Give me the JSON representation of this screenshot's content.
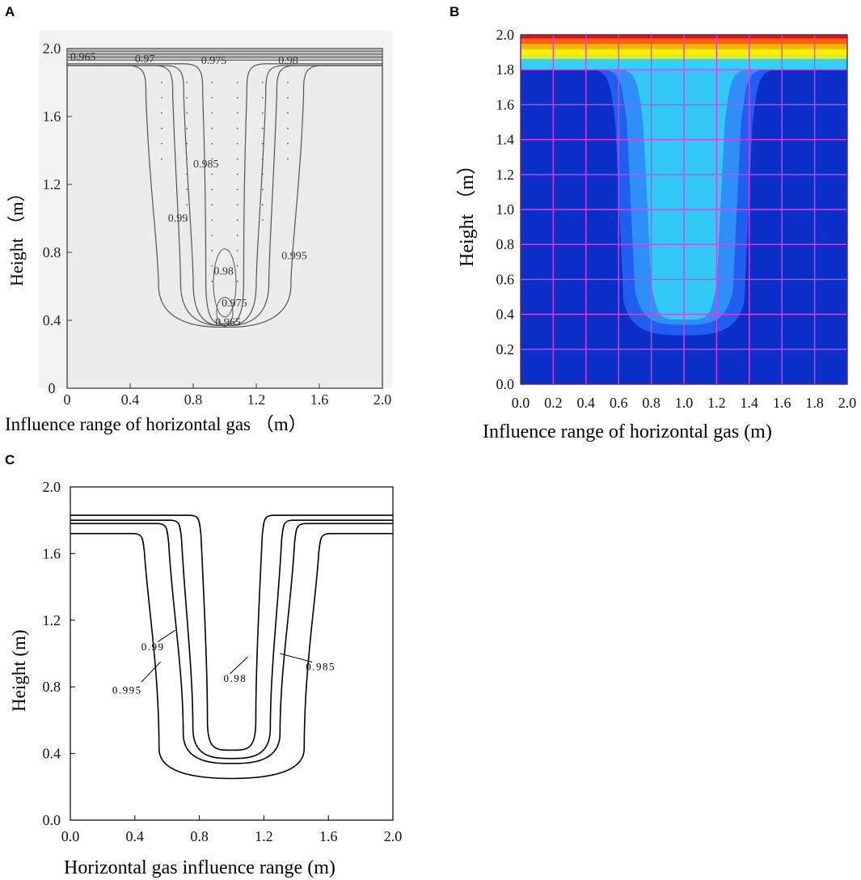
{
  "panels": {
    "A": {
      "letter": "A"
    },
    "B": {
      "letter": "B"
    },
    "C": {
      "letter": "C"
    }
  },
  "chart_data": [
    {
      "panel": "A",
      "type": "contour",
      "xlabel": "Influence range of horizontal gas  （m）",
      "ylabel": "Height （m）",
      "xlim": [
        0,
        2.0
      ],
      "ylim": [
        0,
        2.0
      ],
      "xticks": [
        "0",
        "0.4",
        "0.8",
        "1.2",
        "1.6",
        "2.0"
      ],
      "yticks": [
        "0",
        "0.4",
        "0.8",
        "1.2",
        "1.6",
        "2.0"
      ],
      "contour_labels": [
        {
          "text": "0.965",
          "x": 0.02,
          "y": 1.93
        },
        {
          "text": "0.97",
          "x": 0.43,
          "y": 1.92
        },
        {
          "text": "0.975",
          "x": 0.85,
          "y": 1.91
        },
        {
          "text": "0.98",
          "x": 1.34,
          "y": 1.91
        },
        {
          "text": "0.985",
          "x": 0.8,
          "y": 1.3
        },
        {
          "text": "0.99",
          "x": 0.64,
          "y": 0.98
        },
        {
          "text": "0.995",
          "x": 1.36,
          "y": 0.76
        },
        {
          "text": "0.98",
          "x": 0.93,
          "y": 0.67
        },
        {
          "text": "0.975",
          "x": 0.98,
          "y": 0.48
        },
        {
          "text": "0.965",
          "x": 0.94,
          "y": 0.37
        }
      ],
      "grid": false,
      "background": "#ececec"
    },
    {
      "panel": "B",
      "type": "heatmap",
      "xlabel": "Influence range of horizontal gas (m)",
      "ylabel": "Height （m）",
      "xlim": [
        0,
        2.0
      ],
      "ylim": [
        0,
        2.0
      ],
      "xticks": [
        "0.0",
        "0.2",
        "0.4",
        "0.6",
        "0.8",
        "1.0",
        "1.2",
        "1.4",
        "1.6",
        "1.8",
        "2.0"
      ],
      "yticks": [
        "0.0",
        "0.2",
        "0.4",
        "0.6",
        "0.8",
        "1.0",
        "1.2",
        "1.4",
        "1.6",
        "1.8",
        "2.0"
      ],
      "grid": true,
      "grid_color": "#e040e0",
      "color_bands": [
        {
          "color": "#0b2fc8",
          "region": "background"
        },
        {
          "color": "#1f5ef0",
          "region": "plume outer",
          "x": [
            0.55,
            1.45
          ],
          "y_bottom": 0.28
        },
        {
          "color": "#2f8ef7",
          "region": "plume middle",
          "x": [
            0.62,
            1.38
          ],
          "y_bottom": 0.34
        },
        {
          "color": "#33c8f5",
          "region": "plume inner",
          "x": [
            0.72,
            1.28
          ],
          "y_bottom": 0.37
        },
        {
          "color": "#33d0f8",
          "region": "top layer",
          "y": [
            1.8,
            1.86
          ]
        },
        {
          "color": "#b8f070",
          "region": "top layer",
          "y": [
            1.86,
            1.88
          ]
        },
        {
          "color": "#fff000",
          "region": "top layer",
          "y": [
            1.88,
            1.92
          ]
        },
        {
          "color": "#ffb000",
          "region": "top layer",
          "y": [
            1.92,
            1.95
          ]
        },
        {
          "color": "#ff6010",
          "region": "top layer",
          "y": [
            1.95,
            1.98
          ]
        },
        {
          "color": "#e01010",
          "region": "top layer",
          "y": [
            1.98,
            2.0
          ]
        }
      ]
    },
    {
      "panel": "C",
      "type": "contour",
      "xlabel": "Horizontal gas influence range (m)",
      "ylabel": "Height (m)",
      "xlim": [
        0,
        2.0
      ],
      "ylim": [
        0,
        2.0
      ],
      "xticks": [
        "0.0",
        "0.4",
        "0.8",
        "1.2",
        "1.6",
        "2.0"
      ],
      "yticks": [
        "0.0",
        "0.4",
        "0.8",
        "1.2",
        "1.6",
        "2.0"
      ],
      "grid": false,
      "contours": [
        {
          "level": "0.98",
          "flat_y": 1.83,
          "half_top": 0.2,
          "half_bot": 0.15,
          "bottom": 0.42
        },
        {
          "level": "0.985",
          "flat_y": 1.8,
          "half_top": 0.32,
          "half_bot": 0.24,
          "bottom": 0.37
        },
        {
          "level": "0.99",
          "flat_y": 1.78,
          "half_top": 0.4,
          "half_bot": 0.3,
          "bottom": 0.34
        },
        {
          "level": "0.995",
          "flat_y": 1.72,
          "half_top": 0.55,
          "half_bot": 0.45,
          "bottom": 0.25
        }
      ],
      "contour_labels": [
        {
          "text": "0.98",
          "x": 0.95,
          "y": 0.83
        },
        {
          "text": "0.985",
          "x": 1.46,
          "y": 0.9
        },
        {
          "text": "0.99",
          "x": 0.44,
          "y": 1.02
        },
        {
          "text": "0.995",
          "x": 0.26,
          "y": 0.76
        }
      ]
    }
  ]
}
